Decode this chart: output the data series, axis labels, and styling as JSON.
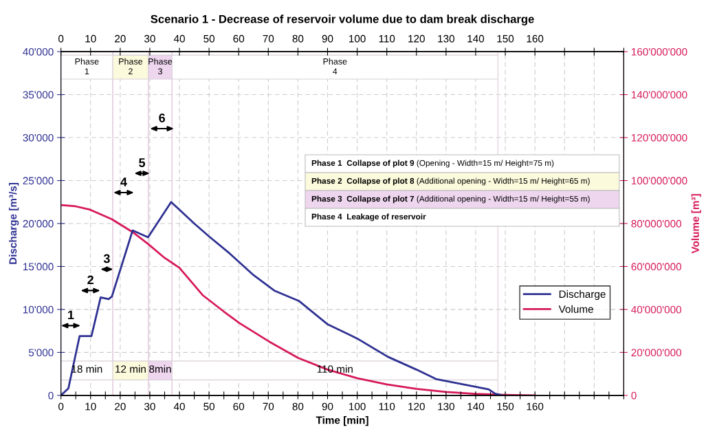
{
  "chart_data": {
    "type": "line",
    "title": "Scenario 1 - Decrease of reservoir volume due to dam break discharge",
    "xlabel": "Time [min]",
    "ylabel": "Discharge [m³/s]",
    "y2label": "Volume [m³]",
    "series": [
      {
        "name": "Discharge",
        "color": "#2e3192",
        "x": [
          0,
          2.5,
          6.3,
          10.3,
          13.4,
          16.1,
          17.2,
          24.2,
          29.4,
          37.2,
          45,
          50,
          57,
          65,
          72,
          80.3,
          89.9,
          100.1,
          110.3,
          120,
          126.6,
          140,
          144.4,
          146.6,
          148.9
        ],
        "values": [
          0,
          800,
          6900,
          6900,
          11400,
          11200,
          11500,
          19200,
          18400,
          22500,
          20000,
          18500,
          16500,
          14000,
          12200,
          11000,
          8300,
          6600,
          4500,
          3000,
          1900,
          1000,
          700,
          200,
          0
        ]
      },
      {
        "name": "Volume",
        "color": "#d6195a",
        "axis": "y2",
        "x": [
          0,
          5,
          9.9,
          17.2,
          24.2,
          29.4,
          35,
          40,
          47.8,
          55,
          60.3,
          70.2,
          80,
          90,
          100,
          110,
          120,
          130,
          140,
          150,
          160
        ],
        "values": [
          88600000,
          88000000,
          86400000,
          82000000,
          76000000,
          70500000,
          64000000,
          59400000,
          46700000,
          39000000,
          33600000,
          25100000,
          17500000,
          12000000,
          8000000,
          5100000,
          3000000,
          1600000,
          700000,
          200000,
          0
        ]
      }
    ],
    "xlim": [
      0,
      190
    ],
    "xticks": [
      0,
      {
        "value": 5,
        "label": null
      },
      10,
      {
        "value": 15,
        "label": null
      },
      20,
      {
        "value": 25,
        "label": null
      },
      30,
      {
        "value": 35,
        "label": null
      },
      40,
      {
        "value": 45,
        "label": null
      },
      50,
      {
        "value": 55,
        "label": null
      },
      60,
      {
        "value": 65,
        "label": null
      },
      70,
      {
        "value": 75,
        "label": null
      },
      80,
      {
        "value": 85,
        "label": null
      },
      90,
      {
        "value": 95,
        "label": null
      },
      100,
      {
        "value": 105,
        "label": null
      },
      110,
      {
        "value": 115,
        "label": null
      },
      120,
      {
        "value": 125,
        "label": null
      },
      130,
      {
        "value": 135,
        "label": null
      },
      140,
      {
        "value": 145,
        "label": null
      },
      150,
      {
        "value": 155,
        "label": null
      },
      160,
      {
        "value": 165,
        "label": null
      },
      {
        "value": 170,
        "label": null
      },
      {
        "value": 175,
        "label": null
      },
      {
        "value": 180,
        "label": null
      },
      {
        "value": 185,
        "label": null
      },
      {
        "value": 190,
        "label": null
      }
    ],
    "x2lim": [
      0,
      190
    ],
    "x2ticks": [
      0,
      10,
      20,
      30,
      40,
      50,
      60,
      70,
      80,
      90,
      100,
      110,
      120,
      130,
      140,
      150,
      160,
      {
        "value": 170,
        "label": null
      },
      {
        "value": 180,
        "label": null
      },
      {
        "value": 190,
        "label": null
      }
    ],
    "ylim": [
      0,
      40000
    ],
    "yticks": [
      0,
      {
        "value": 5000,
        "label": "5'000"
      },
      {
        "value": 10000,
        "label": "10'000"
      },
      {
        "value": 15000,
        "label": "15'000"
      },
      {
        "value": 20000,
        "label": "20'000"
      },
      {
        "value": 25000,
        "label": "25'000"
      },
      {
        "value": 30000,
        "label": "30'000"
      },
      {
        "value": 35000,
        "label": "35'000"
      },
      {
        "value": 40000,
        "label": "40'000"
      }
    ],
    "y2lim": [
      0,
      160000000
    ],
    "y2ticks": [
      0,
      {
        "value": 20000000,
        "label": "20'000'000"
      },
      {
        "value": 40000000,
        "label": "40'000'000"
      },
      {
        "value": 60000000,
        "label": "60'000'000"
      },
      {
        "value": 80000000,
        "label": "80'000'000"
      },
      {
        "value": 100000000,
        "label": "100'000'000"
      },
      {
        "value": 120000000,
        "label": "120'000'000"
      },
      {
        "value": 140000000,
        "label": "140'000'000"
      },
      {
        "value": 160000000,
        "label": "160'000'000"
      }
    ],
    "grid": true,
    "legend": "right",
    "bands": [
      {
        "axis": "x",
        "from": 0,
        "to": 17.5,
        "label": "Phase\n1",
        "color": "#ffffff"
      },
      {
        "axis": "x",
        "from": 17.5,
        "to": 29.5,
        "label": "Phase\n2",
        "color": "#fcfadc"
      },
      {
        "axis": "x",
        "from": 29.5,
        "to": 37.5,
        "label": "Phase\n3",
        "color": "#efd6ef"
      },
      {
        "axis": "x",
        "from": 37.5,
        "to": 147.5,
        "label": "Phase\n4",
        "color": "#ffffff"
      }
    ],
    "annotations": [
      "1",
      "2",
      "3",
      "4",
      "5",
      "6",
      "18 min",
      "12 min",
      "8min",
      "110 min",
      "Phase 1  Collapse of plot 9 (Opening - Width=15 m/ Height=75 m)",
      "Phase 2  Collapse of plot 8 (Additional opening - Width=15 m/ Height=65 m)",
      "Phase 3  Collapse of plot 7 (Additional opening - Width=15 m/ Height=55 m)",
      "Phase 4  Leakage of reservoir"
    ]
  }
}
